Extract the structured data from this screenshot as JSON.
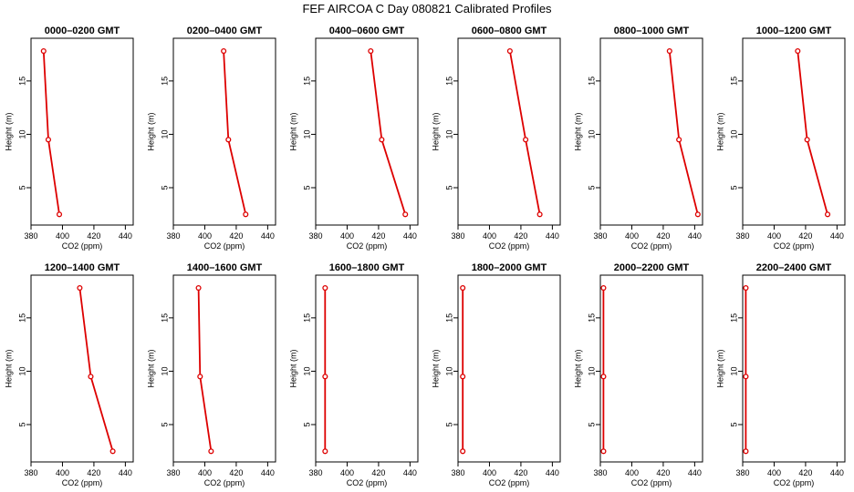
{
  "title": "FEF AIRCOA C  Day 080821  Calibrated Profiles",
  "colors": {
    "series": "#dd0000",
    "axis": "#000000",
    "background": "#ffffff"
  },
  "chart_data": [
    {
      "type": "line",
      "title": "0000–0200 GMT",
      "xlabel": "CO2 (ppm)",
      "ylabel": "Height (m)",
      "xlim": [
        380,
        445
      ],
      "ylim": [
        1.5,
        19
      ],
      "xticks": [
        380,
        400,
        420,
        440
      ],
      "yticks": [
        5,
        10,
        15
      ],
      "x": [
        388,
        391,
        398
      ],
      "y": [
        17.8,
        9.5,
        2.5
      ]
    },
    {
      "type": "line",
      "title": "0200–0400 GMT",
      "xlabel": "CO2 (ppm)",
      "ylabel": "Height (m)",
      "xlim": [
        380,
        445
      ],
      "ylim": [
        1.5,
        19
      ],
      "xticks": [
        380,
        400,
        420,
        440
      ],
      "yticks": [
        5,
        10,
        15
      ],
      "x": [
        412,
        415,
        426
      ],
      "y": [
        17.8,
        9.5,
        2.5
      ]
    },
    {
      "type": "line",
      "title": "0400–0600 GMT",
      "xlabel": "CO2 (ppm)",
      "ylabel": "Height (m)",
      "xlim": [
        380,
        445
      ],
      "ylim": [
        1.5,
        19
      ],
      "xticks": [
        380,
        400,
        420,
        440
      ],
      "yticks": [
        5,
        10,
        15
      ],
      "x": [
        415,
        422,
        437
      ],
      "y": [
        17.8,
        9.5,
        2.5
      ]
    },
    {
      "type": "line",
      "title": "0600–0800 GMT",
      "xlabel": "CO2 (ppm)",
      "ylabel": "Height (m)",
      "xlim": [
        380,
        445
      ],
      "ylim": [
        1.5,
        19
      ],
      "xticks": [
        380,
        400,
        420,
        440
      ],
      "yticks": [
        5,
        10,
        15
      ],
      "x": [
        413,
        423,
        432
      ],
      "y": [
        17.8,
        9.5,
        2.5
      ]
    },
    {
      "type": "line",
      "title": "0800–1000 GMT",
      "xlabel": "CO2 (ppm)",
      "ylabel": "Height (m)",
      "xlim": [
        380,
        445
      ],
      "ylim": [
        1.5,
        19
      ],
      "xticks": [
        380,
        400,
        420,
        440
      ],
      "yticks": [
        5,
        10,
        15
      ],
      "x": [
        424,
        430,
        442
      ],
      "y": [
        17.8,
        9.5,
        2.5
      ]
    },
    {
      "type": "line",
      "title": "1000–1200 GMT",
      "xlabel": "CO2 (ppm)",
      "ylabel": "Height (m)",
      "xlim": [
        380,
        445
      ],
      "ylim": [
        1.5,
        19
      ],
      "xticks": [
        380,
        400,
        420,
        440
      ],
      "yticks": [
        5,
        10,
        15
      ],
      "x": [
        415,
        421,
        434
      ],
      "y": [
        17.8,
        9.5,
        2.5
      ]
    },
    {
      "type": "line",
      "title": "1200–1400 GMT",
      "xlabel": "CO2 (ppm)",
      "ylabel": "Height (m)",
      "xlim": [
        380,
        445
      ],
      "ylim": [
        1.5,
        19
      ],
      "xticks": [
        380,
        400,
        420,
        440
      ],
      "yticks": [
        5,
        10,
        15
      ],
      "x": [
        411,
        418,
        432
      ],
      "y": [
        17.8,
        9.5,
        2.5
      ]
    },
    {
      "type": "line",
      "title": "1400–1600 GMT",
      "xlabel": "CO2 (ppm)",
      "ylabel": "Height (m)",
      "xlim": [
        380,
        445
      ],
      "ylim": [
        1.5,
        19
      ],
      "xticks": [
        380,
        400,
        420,
        440
      ],
      "yticks": [
        5,
        10,
        15
      ],
      "x": [
        396,
        397,
        404
      ],
      "y": [
        17.8,
        9.5,
        2.5
      ]
    },
    {
      "type": "line",
      "title": "1600–1800 GMT",
      "xlabel": "CO2 (ppm)",
      "ylabel": "Height (m)",
      "xlim": [
        380,
        445
      ],
      "ylim": [
        1.5,
        19
      ],
      "xticks": [
        380,
        400,
        420,
        440
      ],
      "yticks": [
        5,
        10,
        15
      ],
      "x": [
        386,
        386,
        386
      ],
      "y": [
        17.8,
        9.5,
        2.5
      ]
    },
    {
      "type": "line",
      "title": "1800–2000 GMT",
      "xlabel": "CO2 (ppm)",
      "ylabel": "Height (m)",
      "xlim": [
        380,
        445
      ],
      "ylim": [
        1.5,
        19
      ],
      "xticks": [
        380,
        400,
        420,
        440
      ],
      "yticks": [
        5,
        10,
        15
      ],
      "x": [
        383,
        383,
        383
      ],
      "y": [
        17.8,
        9.5,
        2.5
      ]
    },
    {
      "type": "line",
      "title": "2000–2200 GMT",
      "xlabel": "CO2 (ppm)",
      "ylabel": "Height (m)",
      "xlim": [
        380,
        445
      ],
      "ylim": [
        1.5,
        19
      ],
      "xticks": [
        380,
        400,
        420,
        440
      ],
      "yticks": [
        5,
        10,
        15
      ],
      "x": [
        382,
        382,
        382
      ],
      "y": [
        17.8,
        9.5,
        2.5
      ]
    },
    {
      "type": "line",
      "title": "2200–2400 GMT",
      "xlabel": "CO2 (ppm)",
      "ylabel": "Height (m)",
      "xlim": [
        380,
        445
      ],
      "ylim": [
        1.5,
        19
      ],
      "xticks": [
        380,
        400,
        420,
        440
      ],
      "yticks": [
        5,
        10,
        15
      ],
      "x": [
        382,
        382,
        382
      ],
      "y": [
        17.8,
        9.5,
        2.5
      ]
    }
  ]
}
